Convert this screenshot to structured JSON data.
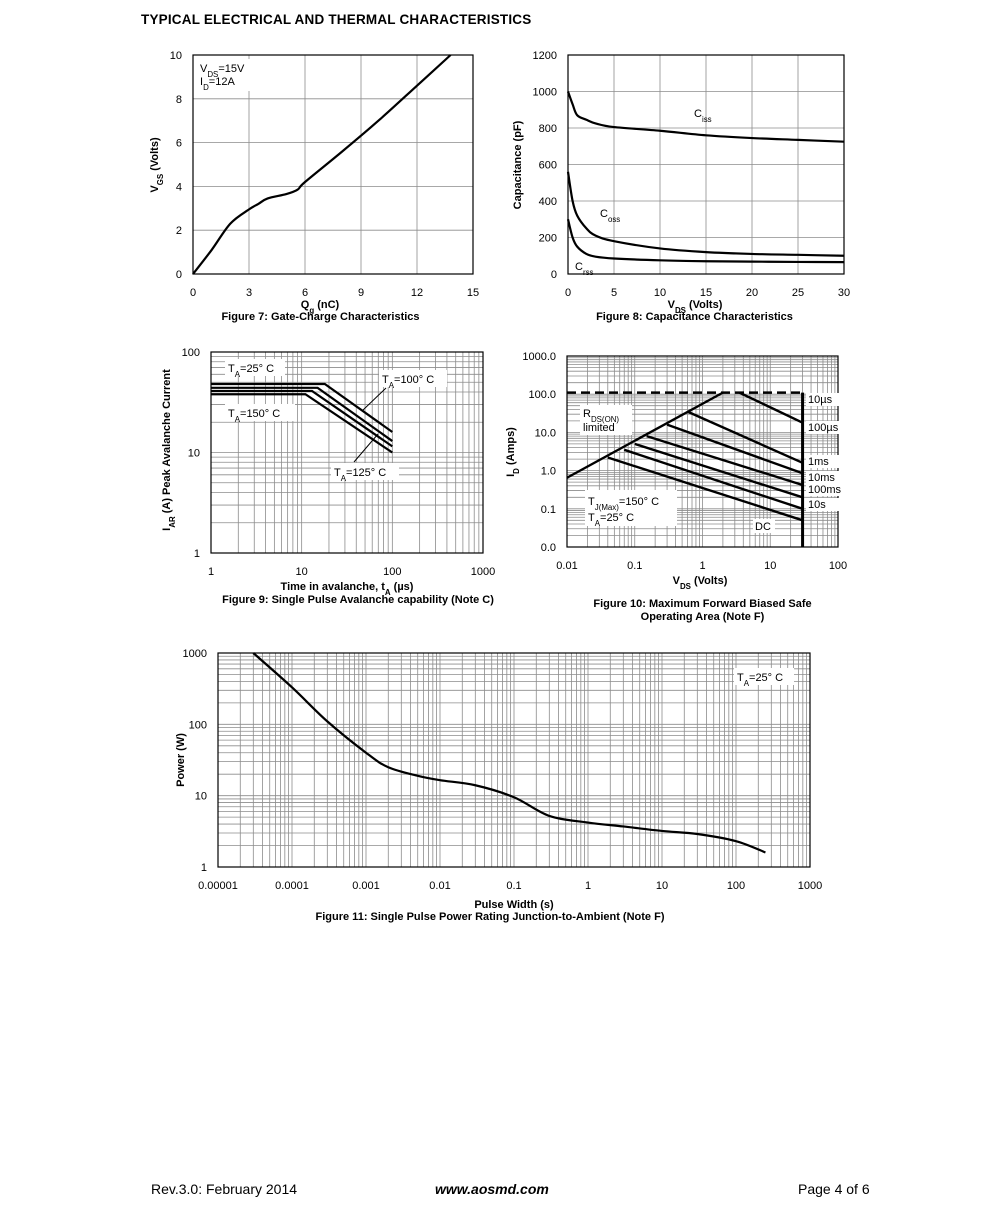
{
  "header": {
    "title": "TYPICAL ELECTRICAL AND THERMAL CHARACTERISTICS"
  },
  "footer": {
    "rev": "Rev.3.0: February 2014",
    "website": "www.aosmd.com",
    "page": "Page 4 of 6"
  },
  "chart_data": [
    {
      "id": "fig7",
      "type": "line",
      "title": "Figure 7: Gate-Charge Characteristics",
      "xlabel": "Qg (nC)",
      "ylabel": "VGS (Volts)",
      "xlim": [
        0,
        15
      ],
      "ylim": [
        0,
        10
      ],
      "xticks": [
        0,
        3,
        6,
        9,
        12,
        15
      ],
      "yticks": [
        0,
        2,
        4,
        6,
        8,
        10
      ],
      "grid": true,
      "annotations": [
        "VDS=15V",
        "ID=12A"
      ],
      "series": [
        {
          "x": [
            0,
            1,
            2,
            3,
            3.5,
            4,
            5,
            5.6,
            6,
            8,
            10,
            12,
            13.8
          ],
          "y": [
            0,
            1.1,
            2.3,
            2.95,
            3.2,
            3.45,
            3.65,
            3.85,
            4.2,
            5.6,
            7.05,
            8.6,
            10
          ]
        }
      ]
    },
    {
      "id": "fig8",
      "type": "line",
      "title": "Figure 8: Capacitance Characteristics",
      "xlabel": "VDS (Volts)",
      "ylabel": "Capacitance (pF)",
      "xlim": [
        0,
        30
      ],
      "ylim": [
        0,
        1200
      ],
      "xticks": [
        0,
        5,
        10,
        15,
        20,
        25,
        30
      ],
      "yticks": [
        0,
        200,
        400,
        600,
        800,
        1000,
        1200
      ],
      "grid": true,
      "series": [
        {
          "name": "Ciss",
          "x": [
            0,
            0.5,
            1,
            2,
            3,
            5,
            10,
            15,
            20,
            25,
            30
          ],
          "y": [
            1000,
            930,
            870,
            845,
            825,
            805,
            785,
            760,
            745,
            735,
            725
          ]
        },
        {
          "name": "Coss",
          "x": [
            0,
            0.5,
            1,
            2,
            3,
            5,
            10,
            15,
            20,
            25,
            30
          ],
          "y": [
            560,
            400,
            320,
            250,
            210,
            180,
            140,
            120,
            110,
            105,
            100
          ]
        },
        {
          "name": "Crss",
          "x": [
            0,
            0.5,
            1,
            2,
            3,
            5,
            10,
            15,
            20,
            25,
            30
          ],
          "y": [
            300,
            200,
            150,
            110,
            95,
            85,
            75,
            70,
            68,
            66,
            65
          ]
        }
      ]
    },
    {
      "id": "fig9",
      "type": "line",
      "title": "Figure 9: Single Pulse Avalanche capability (Note C)",
      "xlabel": "Time in avalanche, tA (µs)",
      "ylabel": "IAR (A) Peak Avalanche Current",
      "xscale": "log",
      "yscale": "log",
      "xlim": [
        1,
        1000
      ],
      "ylim": [
        1,
        100
      ],
      "xticks": [
        1,
        10,
        100,
        1000
      ],
      "yticks": [
        1,
        10,
        100
      ],
      "grid": true,
      "series": [
        {
          "name": "TA=25° C",
          "x": [
            1,
            18,
            100
          ],
          "y": [
            48,
            48,
            16
          ]
        },
        {
          "name": "TA=100° C",
          "x": [
            1,
            15,
            100
          ],
          "y": [
            44,
            44,
            13
          ]
        },
        {
          "name": "TA=125° C",
          "x": [
            1,
            13,
            100
          ],
          "y": [
            41,
            41,
            11.5
          ]
        },
        {
          "name": "TA=150° C",
          "x": [
            1,
            11,
            100
          ],
          "y": [
            38,
            38,
            10
          ]
        }
      ]
    },
    {
      "id": "fig10",
      "type": "line",
      "title": "Figure 10: Maximum Forward Biased Safe Operating Area (Note F)",
      "xlabel": "VDS (Volts)",
      "ylabel": "ID (Amps)",
      "xscale": "log",
      "yscale": "log",
      "xlim": [
        0.01,
        100
      ],
      "ylim": [
        0.01,
        1000
      ],
      "xticks": [
        0.01,
        0.1,
        1,
        10,
        100
      ],
      "xticklabels": [
        "0.01",
        "0.1",
        "1",
        "10",
        "100"
      ],
      "yticks": [
        0.01,
        0.1,
        1,
        10,
        100,
        1000
      ],
      "yticklabels": [
        "0.0",
        "0.1",
        "1.0",
        "10.0",
        "100.0",
        "1000.0"
      ],
      "grid": true,
      "annotations": [
        "RDS(ON) limited",
        "TJ(Max)=150° C",
        "TA=25° C"
      ],
      "limits": {
        "rds_on": {
          "x": [
            0.01,
            2
          ],
          "y": [
            0.65,
            110
          ]
        },
        "current_limit": 110,
        "vds_max": 30
      },
      "series": [
        {
          "name": "10µs",
          "x": [
            3.5,
            30
          ],
          "y": [
            110,
            18
          ]
        },
        {
          "name": "100µs",
          "x": [
            0.6,
            30
          ],
          "y": [
            35,
            1.6
          ]
        },
        {
          "name": "1ms",
          "x": [
            0.3,
            30
          ],
          "y": [
            16,
            0.85
          ]
        },
        {
          "name": "10ms",
          "x": [
            0.15,
            30
          ],
          "y": [
            8,
            0.42
          ]
        },
        {
          "name": "100ms",
          "x": [
            0.1,
            30
          ],
          "y": [
            5,
            0.2
          ]
        },
        {
          "name": "10s",
          "x": [
            0.07,
            30
          ],
          "y": [
            3.5,
            0.1
          ]
        },
        {
          "name": "DC",
          "x": [
            0.04,
            30
          ],
          "y": [
            2.2,
            0.05
          ]
        }
      ]
    },
    {
      "id": "fig11",
      "type": "line",
      "title": "Figure 11: Single Pulse Power Rating Junction-to-Ambient (Note F)",
      "xlabel": "Pulse Width (s)",
      "ylabel": "Power (W)",
      "xscale": "log",
      "yscale": "log",
      "xlim": [
        1e-05,
        1000
      ],
      "ylim": [
        1,
        1000
      ],
      "xticks": [
        1e-05,
        0.0001,
        0.001,
        0.01,
        0.1,
        1,
        10,
        100,
        1000
      ],
      "xticklabels": [
        "0.00001",
        "0.0001",
        "0.001",
        "0.01",
        "0.1",
        "1",
        "10",
        "100",
        "1000"
      ],
      "yticks": [
        1,
        10,
        100,
        1000
      ],
      "grid": true,
      "annotations": [
        "TA=25° C"
      ],
      "series": [
        {
          "x": [
            3e-05,
            0.0001,
            0.0003,
            0.001,
            0.002,
            0.005,
            0.01,
            0.03,
            0.1,
            0.3,
            1,
            3,
            10,
            30,
            100,
            250
          ],
          "y": [
            1000,
            330,
            110,
            40,
            25,
            19,
            16.5,
            14,
            9.5,
            5.2,
            4.2,
            3.7,
            3.2,
            2.9,
            2.3,
            1.6
          ]
        }
      ]
    }
  ]
}
